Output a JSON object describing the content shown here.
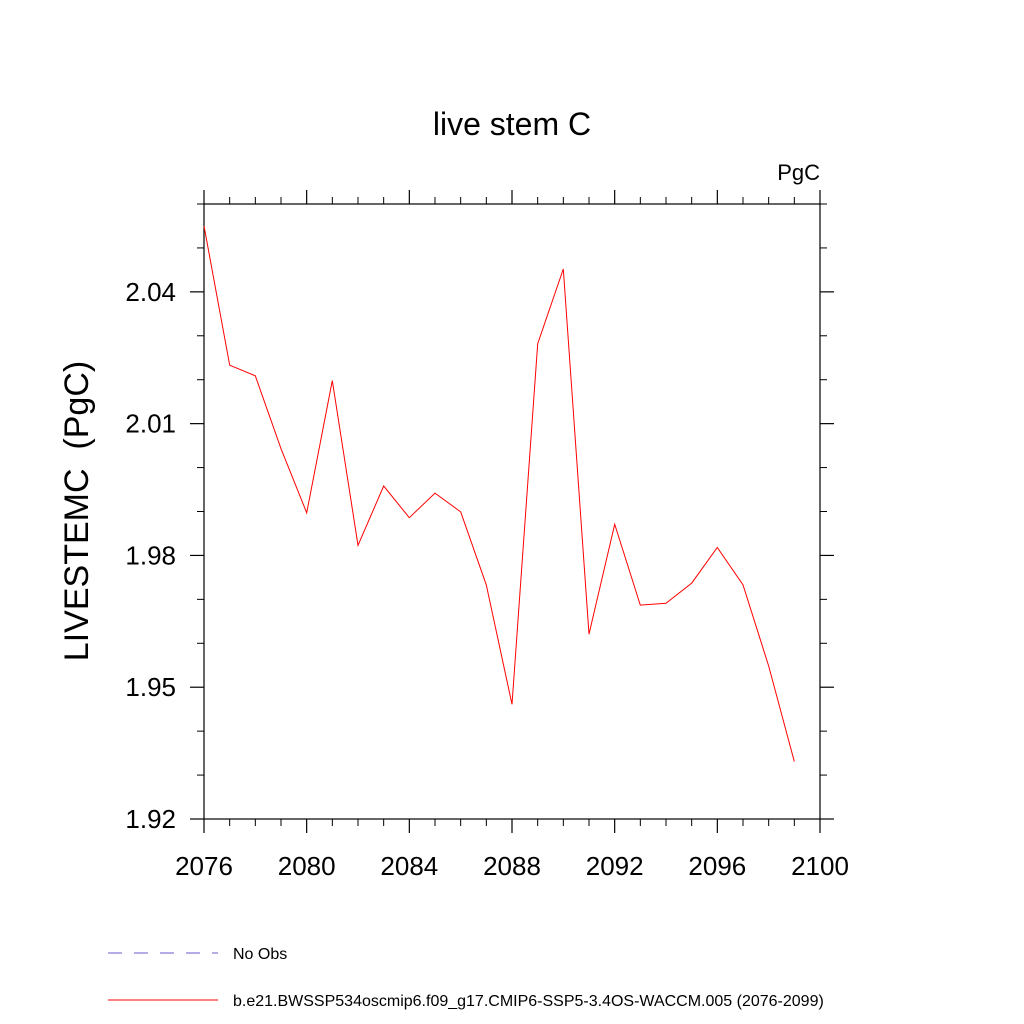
{
  "chart_data": {
    "type": "line",
    "title": "live stem C",
    "units": "PgC",
    "xlabel": "",
    "ylabel": "LIVESTEMC  (PgC)",
    "xlim": [
      2076,
      2100
    ],
    "ylim": [
      1.92,
      2.06
    ],
    "x_ticks": [
      "2076",
      "2080",
      "2084",
      "2088",
      "2092",
      "2096",
      "2100"
    ],
    "y_ticks": [
      "1.92",
      "1.95",
      "1.98",
      "2.01",
      "2.04"
    ],
    "grid": false,
    "legend_position": "bottom-left",
    "series": [
      {
        "name": "b.e21.BWSSP534oscmip6.f09_g17.CMIP6-SSP5-3.4OS-WACCM.005 (2076-2099)",
        "color": "#ff0000",
        "x": [
          2076,
          2077,
          2078,
          2079,
          2080,
          2081,
          2082,
          2083,
          2084,
          2085,
          2086,
          2087,
          2088,
          2089,
          2090,
          2091,
          2092,
          2093,
          2094,
          2095,
          2096,
          2097,
          2098,
          2099
        ],
        "y": [
          2.055,
          2.0233,
          2.0209,
          2.0043,
          1.9897,
          2.0198,
          1.9823,
          1.9958,
          1.9886,
          1.9942,
          1.9899,
          1.9733,
          1.9461,
          2.0282,
          2.0452,
          1.9621,
          1.9871,
          1.9687,
          1.9691,
          1.9737,
          1.9818,
          1.9733,
          1.9548,
          1.9331
        ]
      }
    ],
    "legend": [
      {
        "label": "No Obs",
        "color": "#6a5acd",
        "style": "dashed"
      },
      {
        "label": "b.e21.BWSSP534oscmip6.f09_g17.CMIP6-SSP5-3.4OS-WACCM.005 (2076-2099)",
        "color": "#ff0000",
        "style": "solid"
      }
    ]
  }
}
